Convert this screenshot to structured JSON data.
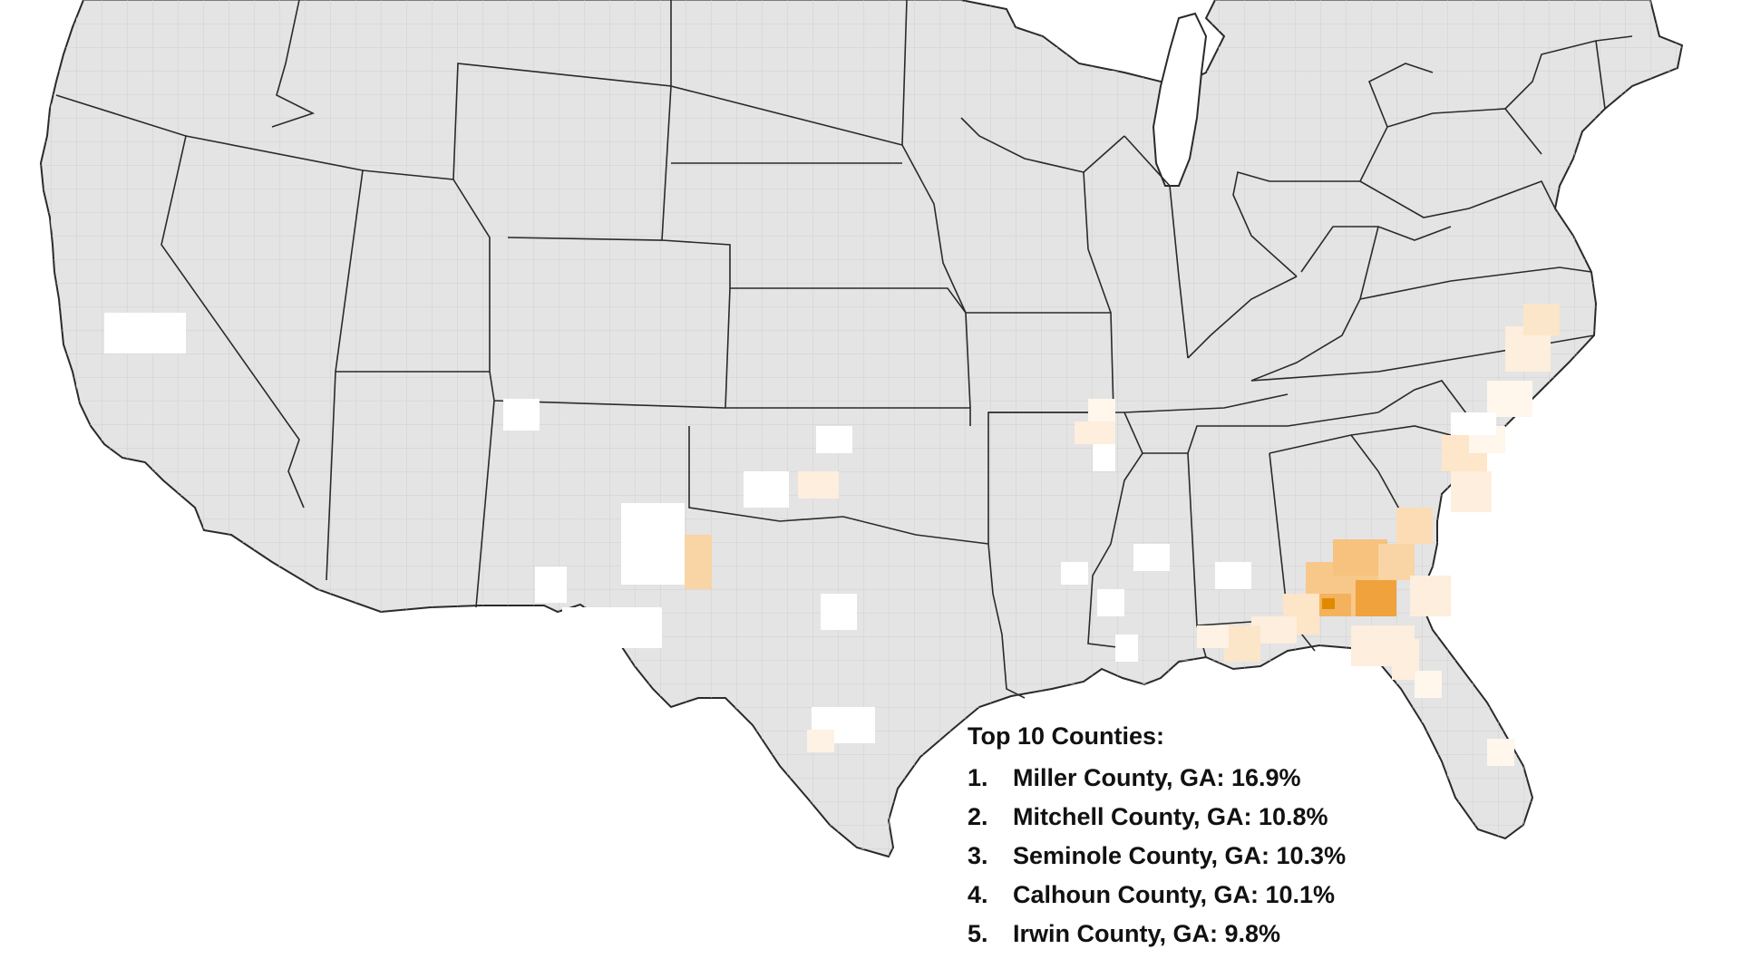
{
  "map": {
    "colors": {
      "land": "#e4e4e4",
      "county_line": "#c9c9c9",
      "state_line": "#2a2a2a",
      "water": "#ffffff",
      "scale_none": "#ffffff",
      "scale_low": "#fdeedd",
      "scale_mid": "#f8c88b",
      "scale_high": "#f0a23c",
      "scale_max": "#e08a00"
    }
  },
  "legend": {
    "title": "Top 10 Counties:",
    "items": [
      {
        "rank": "1.",
        "label": "Miller County, GA: 16.9%"
      },
      {
        "rank": "2.",
        "label": "Mitchell County, GA: 10.8%"
      },
      {
        "rank": "3.",
        "label": "Seminole County, GA: 10.3%"
      },
      {
        "rank": "4.",
        "label": "Calhoun County, GA: 10.1%"
      },
      {
        "rank": "5.",
        "label": "Irwin County, GA: 9.8%"
      }
    ]
  }
}
